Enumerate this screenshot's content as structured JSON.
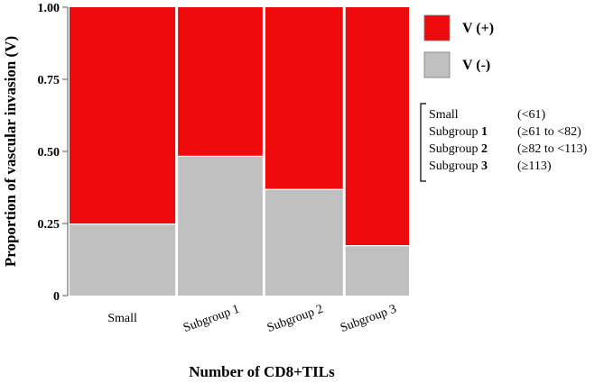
{
  "chart_data": {
    "type": "bar",
    "subtype": "mosaic",
    "title": "",
    "xlabel": "Number of CD8+TILs",
    "ylabel": "Proportion of vascular invasion (V)",
    "ylim": [
      0,
      1
    ],
    "yticks": [
      "0",
      "0.25",
      "0.50",
      "0.75",
      "1.00"
    ],
    "categories": [
      "Small",
      "Subgroup 1",
      "Subgroup 2",
      "Subgroup 3"
    ],
    "category_widths": [
      0.3,
      0.24,
      0.22,
      0.18
    ],
    "series": [
      {
        "name": "V (-)",
        "color": "#c0c0c0",
        "values": [
          0.25,
          0.485,
          0.37,
          0.175
        ]
      },
      {
        "name": "V (+)",
        "color": "#ee0a0a",
        "values": [
          0.75,
          0.515,
          0.63,
          0.825
        ]
      }
    ],
    "legend": {
      "placement": "right",
      "entries": [
        {
          "label": "V (+)",
          "color": "#ee0a0a"
        },
        {
          "label": "V (-)",
          "color": "#c0c0c0"
        }
      ]
    },
    "definitions": [
      {
        "name_prefix": "Small",
        "name_number": "",
        "range": "(<61)"
      },
      {
        "name_prefix": "Subgroup ",
        "name_number": "1",
        "range": "(≥61 to <82)"
      },
      {
        "name_prefix": "Subgroup ",
        "name_number": "2",
        "range": "(≥82 to <113)"
      },
      {
        "name_prefix": "Subgroup ",
        "name_number": "3",
        "range": "(≥113)"
      }
    ],
    "grid": false
  }
}
